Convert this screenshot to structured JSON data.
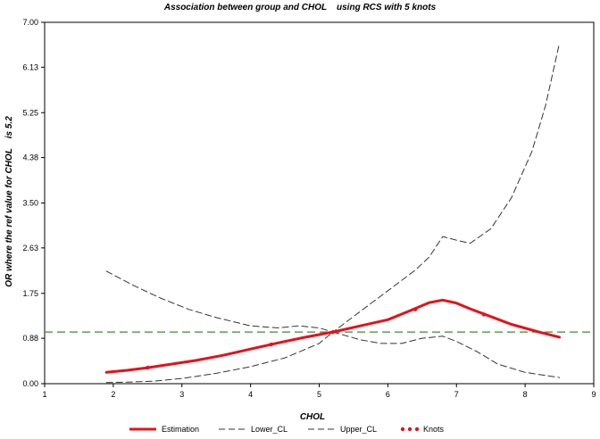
{
  "chart_data": {
    "type": "line",
    "title": "Association between group and CHOL    using RCS with 5 knots",
    "xlabel": "CHOL",
    "ylabel": "OR where the ref value for CHOL    is 5.2",
    "xlim": [
      1,
      9
    ],
    "ylim": [
      0,
      7
    ],
    "x_ticks": [
      1,
      2,
      3,
      4,
      5,
      6,
      7,
      8,
      9
    ],
    "y_ticks": [
      0.0,
      0.88,
      1.75,
      2.63,
      3.5,
      4.38,
      5.25,
      6.13,
      7.0
    ],
    "x_tick_labels": [
      "1",
      "2",
      "3",
      "4",
      "5",
      "6",
      "7",
      "8",
      "9"
    ],
    "y_tick_labels": [
      "0.00",
      "0.88",
      "1.75",
      "2.63",
      "3.50",
      "4.38",
      "5.25",
      "6.13",
      "7.00"
    ],
    "reference_line": {
      "y": 1.0,
      "color": "#3a8a3a",
      "style": "dashed"
    },
    "series": [
      {
        "name": "Estimation",
        "style": "solid",
        "color": "#e8101a",
        "x": [
          1.9,
          2.2,
          2.5,
          2.8,
          3.2,
          3.6,
          4.0,
          4.4,
          4.8,
          5.2,
          5.6,
          6.0,
          6.3,
          6.6,
          6.8,
          7.0,
          7.2,
          7.5,
          7.8,
          8.2,
          8.5
        ],
        "y": [
          0.22,
          0.26,
          0.31,
          0.37,
          0.45,
          0.55,
          0.67,
          0.79,
          0.9,
          1.0,
          1.12,
          1.24,
          1.4,
          1.57,
          1.62,
          1.56,
          1.45,
          1.3,
          1.15,
          1.0,
          0.9
        ]
      },
      {
        "name": "Lower_CL",
        "style": "dashed",
        "color": "#333333",
        "x": [
          1.9,
          2.2,
          2.6,
          3.0,
          3.5,
          4.0,
          4.5,
          5.0,
          5.2,
          5.6,
          5.9,
          6.2,
          6.5,
          6.8,
          7.0,
          7.3,
          7.6,
          8.0,
          8.5
        ],
        "y": [
          0.02,
          0.03,
          0.05,
          0.1,
          0.2,
          0.33,
          0.5,
          0.78,
          1.0,
          0.85,
          0.78,
          0.78,
          0.88,
          0.92,
          0.82,
          0.62,
          0.38,
          0.22,
          0.12
        ]
      },
      {
        "name": "Upper_CL",
        "style": "dashed",
        "color": "#333333",
        "x": [
          1.9,
          2.3,
          2.7,
          3.1,
          3.5,
          4.0,
          4.4,
          4.7,
          5.0,
          5.2,
          5.5,
          5.8,
          6.1,
          6.4,
          6.6,
          6.8,
          7.0,
          7.2,
          7.5,
          7.8,
          8.1,
          8.3,
          8.5
        ],
        "y": [
          2.18,
          1.9,
          1.65,
          1.44,
          1.28,
          1.12,
          1.08,
          1.12,
          1.08,
          1.0,
          1.3,
          1.6,
          1.9,
          2.2,
          2.45,
          2.85,
          2.78,
          2.72,
          3.0,
          3.6,
          4.5,
          5.4,
          6.6
        ]
      },
      {
        "name": "Knots",
        "style": "markers",
        "color": "#e8101a",
        "x": [
          2.5,
          4.3,
          5.2,
          6.4,
          7.4
        ],
        "y": [
          0.31,
          0.76,
          1.0,
          1.44,
          1.34
        ]
      }
    ],
    "legend": {
      "placement": "bottom",
      "entries": [
        "Estimation",
        "Lower_CL",
        "Upper_CL",
        "Knots"
      ]
    }
  }
}
